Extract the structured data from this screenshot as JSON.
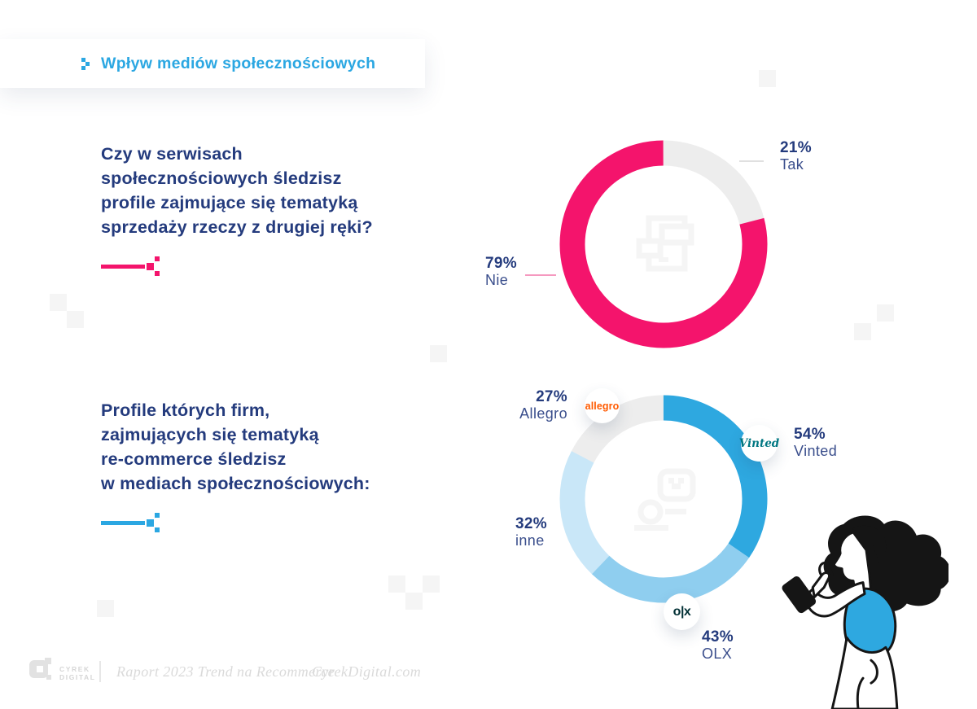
{
  "header": {
    "title": "Wpływ mediów społecznościowych",
    "accent_color": "#2BA7E2"
  },
  "questions": [
    {
      "lines": [
        "Czy w serwisach",
        "społecznościowych śledzisz",
        "profile zajmujące się tematyką",
        "sprzedaży rzeczy z drugiej ręki?"
      ],
      "underline_color": "#F4146C"
    },
    {
      "lines": [
        "Profile których firm,",
        "zajmujących się tematyką",
        "re-commerce śledzisz",
        "w mediach społecznościowych:"
      ],
      "underline_color": "#2BA7E2"
    }
  ],
  "chart_data": [
    {
      "type": "pie",
      "variant": "donut",
      "title": "Czy w serwisach społecznościowych śledzisz profile zajmujące się tematyką sprzedaży rzeczy z drugiej ręki?",
      "categories": [
        "Tak",
        "Nie"
      ],
      "values": [
        21,
        79
      ],
      "unit": "%",
      "colors": [
        "#EDEDED",
        "#F4146C"
      ],
      "start_angle": "12-oclock",
      "direction": "clockwise",
      "legend_position": "callout-labels",
      "labels": [
        {
          "pct": "21%",
          "name": "Tak"
        },
        {
          "pct": "79%",
          "name": "Nie"
        }
      ]
    },
    {
      "type": "pie",
      "variant": "donut",
      "title": "Profile których firm, zajmujących się tematyką re-commerce śledzisz w mediach społecznościowych:",
      "categories": [
        "Vinted",
        "OLX",
        "inne",
        "Allegro"
      ],
      "values": [
        54,
        43,
        32,
        27
      ],
      "unit": "%",
      "note": "multi-select question; arc lengths normalized to the sum of values",
      "colors": [
        "#2EA8E0",
        "#8FCEEF",
        "#C9E7F8",
        "#EDEDED"
      ],
      "start_angle": "12-oclock",
      "direction": "clockwise",
      "legend_position": "callout-labels",
      "labels": [
        {
          "pct": "54%",
          "name": "Vinted"
        },
        {
          "pct": "43%",
          "name": "OLX"
        },
        {
          "pct": "32%",
          "name": "inne"
        },
        {
          "pct": "27%",
          "name": "Allegro"
        }
      ]
    }
  ],
  "badges": {
    "allegro": {
      "text": "allegro",
      "color": "#FF5A00"
    },
    "vinted": {
      "text": "Vinted",
      "color": "#007782"
    },
    "olx": {
      "text": "o|x",
      "color": "#002F34"
    }
  },
  "footer": {
    "logo_line1": "CYREK",
    "logo_line2": "DIGITAL",
    "report": "Raport 2023 Trend na Recommerce",
    "site": "CyrekDigital.com"
  }
}
